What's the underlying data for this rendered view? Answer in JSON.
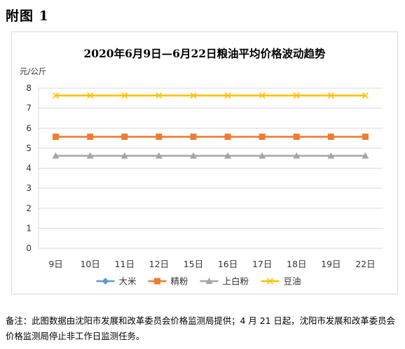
{
  "heading": "附图 1",
  "note": "备注：此图数据由沈阳市发展和改革委员会价格监测局提供；4 月 21 日起，沈阳市发展和改革委员会价格监测局停止非工作日监测任务。",
  "chart_data": {
    "type": "line",
    "title": "2020年6月9日—6月22日粮油平均价格波动趋势",
    "ylabel": "元/公斤",
    "xlabel": "",
    "categories": [
      "9日",
      "10日",
      "11日",
      "12日",
      "15日",
      "16日",
      "17日",
      "18日",
      "19日",
      "22日"
    ],
    "ylim": [
      0,
      8
    ],
    "yticks": [
      0,
      1,
      2,
      3,
      4,
      5,
      6,
      7,
      8
    ],
    "grid": true,
    "legend": "bottom",
    "series": [
      {
        "name": "大米",
        "color": "#5b9bd5",
        "marker": "diamond",
        "values": [
          null,
          null,
          null,
          null,
          null,
          null,
          null,
          null,
          null,
          null
        ]
      },
      {
        "name": "精粉",
        "color": "#ed7d31",
        "marker": "square",
        "values": [
          5.57,
          5.57,
          5.57,
          5.57,
          5.57,
          5.57,
          5.57,
          5.57,
          5.57,
          5.57
        ]
      },
      {
        "name": "上白粉",
        "color": "#a5a5a5",
        "marker": "triangle",
        "values": [
          4.62,
          4.62,
          4.62,
          4.62,
          4.62,
          4.62,
          4.62,
          4.62,
          4.62,
          4.62
        ]
      },
      {
        "name": "豆油",
        "color": "#ffc000",
        "marker": "x",
        "values": [
          7.63,
          7.63,
          7.63,
          7.63,
          7.63,
          7.63,
          7.63,
          7.63,
          7.63,
          7.63
        ]
      }
    ]
  }
}
